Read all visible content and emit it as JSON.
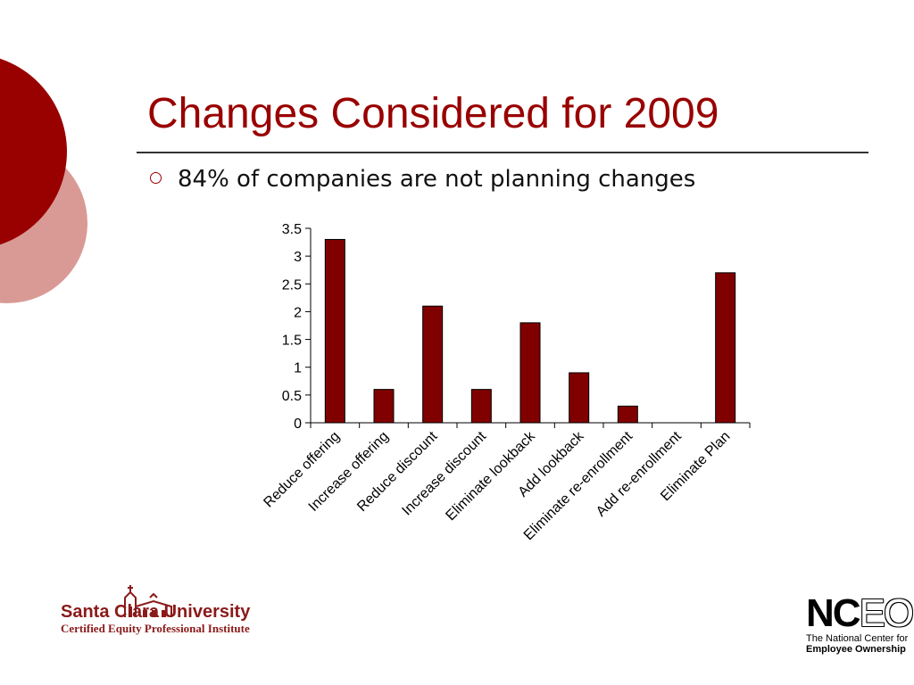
{
  "slide": {
    "title": "Changes Considered for 2009",
    "bullet": "84% of companies are not planning changes"
  },
  "colors": {
    "accent": "#990000",
    "bar_fill": "#800000",
    "deco_light": "#d99a96"
  },
  "chart_data": {
    "type": "bar",
    "categories": [
      "Reduce offering",
      "Increase offering",
      "Reduce discount",
      "Increase discount",
      "Eliminate lookback",
      "Add lookback",
      "Eliminate re-enrollment",
      "Add re-enrollment",
      "Eliminate Plan"
    ],
    "values": [
      3.3,
      0.6,
      2.1,
      0.6,
      1.8,
      0.9,
      0.3,
      0,
      2.7
    ],
    "title": "",
    "xlabel": "",
    "ylabel": "",
    "ylim": [
      0,
      3.5
    ],
    "yticks": [
      0,
      0.5,
      1,
      1.5,
      2,
      2.5,
      3,
      3.5
    ],
    "ytick_labels": [
      "0",
      "0.5",
      "1",
      "1.5",
      "2",
      "2.5",
      "3",
      "3.5"
    ],
    "grid": false,
    "legend": "none"
  },
  "footer": {
    "left_logo": {
      "name": "Santa Clara University",
      "subtitle": "Certified Equity Professional Institute",
      "icon": "mission-church-icon"
    },
    "right_logo": {
      "mark_bold": "NC",
      "mark_outline": "EO",
      "line1": "The National Center for",
      "line2": "Employee Ownership"
    }
  }
}
